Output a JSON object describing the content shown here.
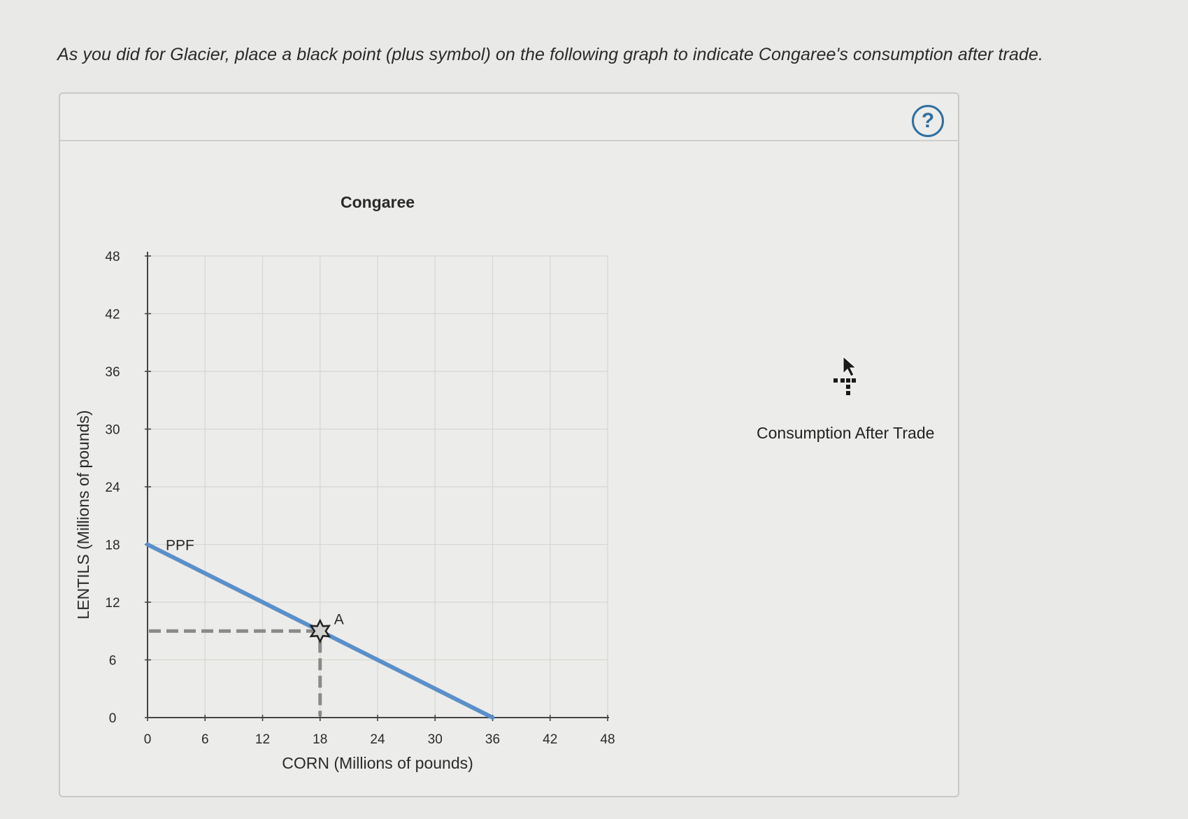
{
  "prompt": "As you did for Glacier, place a black point (plus symbol) on the following graph to indicate Congaree's consumption after trade.",
  "help_button": {
    "label": "?",
    "icon": "question-icon",
    "color": "#2f6fa0"
  },
  "palette": {
    "tool_label": "Consumption After Trade",
    "icon": "plus-point-icon"
  },
  "chart_data": {
    "type": "line",
    "title": "Congaree",
    "xlabel": "CORN (Millions of pounds)",
    "ylabel": "LENTILS (Millions of pounds)",
    "xlim": [
      0,
      48
    ],
    "ylim": [
      0,
      48
    ],
    "xticks": [
      0,
      6,
      12,
      18,
      24,
      30,
      36,
      42,
      48
    ],
    "yticks": [
      0,
      6,
      12,
      18,
      24,
      30,
      36,
      42,
      48
    ],
    "grid": true,
    "series": [
      {
        "name": "PPF",
        "color": "#5b8fc9",
        "points": [
          [
            0,
            18
          ],
          [
            36,
            0
          ]
        ]
      }
    ],
    "points": [
      {
        "label": "A",
        "x": 18,
        "y": 9,
        "marker": "star",
        "dashed_guides": true
      }
    ]
  }
}
